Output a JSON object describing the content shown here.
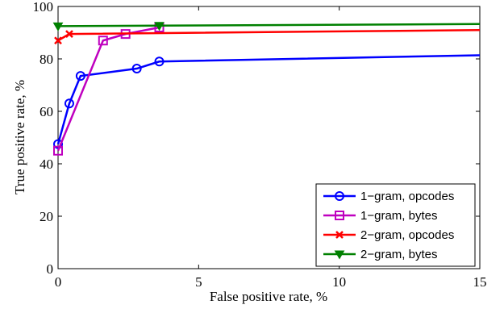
{
  "chart_data": {
    "type": "line",
    "xlabel": "False positive rate, %",
    "ylabel": "True positive rate, %",
    "xlim": [
      0,
      15
    ],
    "ylim": [
      0,
      100
    ],
    "xticks": [
      0,
      5,
      10,
      15
    ],
    "yticks": [
      0,
      20,
      40,
      60,
      80,
      100
    ],
    "grid": false,
    "legend_position": "bottom-right",
    "series": [
      {
        "name": "1−gram, opcodes",
        "color": "#0000ff",
        "marker": "circle",
        "x": [
          0,
          0.4,
          0.8,
          2.8,
          3.6,
          15
        ],
        "y": [
          47.5,
          63,
          73.5,
          76.3,
          79,
          81.4
        ],
        "marker_indices": [
          0,
          1,
          2,
          3,
          4
        ]
      },
      {
        "name": "1−gram, bytes",
        "color": "#bf00bf",
        "marker": "square",
        "x": [
          0,
          1.6,
          2.4,
          3.6
        ],
        "y": [
          45,
          87,
          89.5,
          92
        ],
        "marker_indices": [
          0,
          1,
          2,
          3
        ]
      },
      {
        "name": "2−gram, opcodes",
        "color": "#ff0000",
        "marker": "x",
        "x": [
          0,
          0.4,
          15
        ],
        "y": [
          87,
          89.5,
          91
        ],
        "marker_indices": [
          0,
          1
        ]
      },
      {
        "name": "2−gram, bytes",
        "color": "#008000",
        "marker": "triangle-down",
        "x": [
          0,
          3.6,
          15
        ],
        "y": [
          92.5,
          92.7,
          93.3
        ],
        "marker_indices": [
          0,
          1
        ]
      }
    ]
  }
}
